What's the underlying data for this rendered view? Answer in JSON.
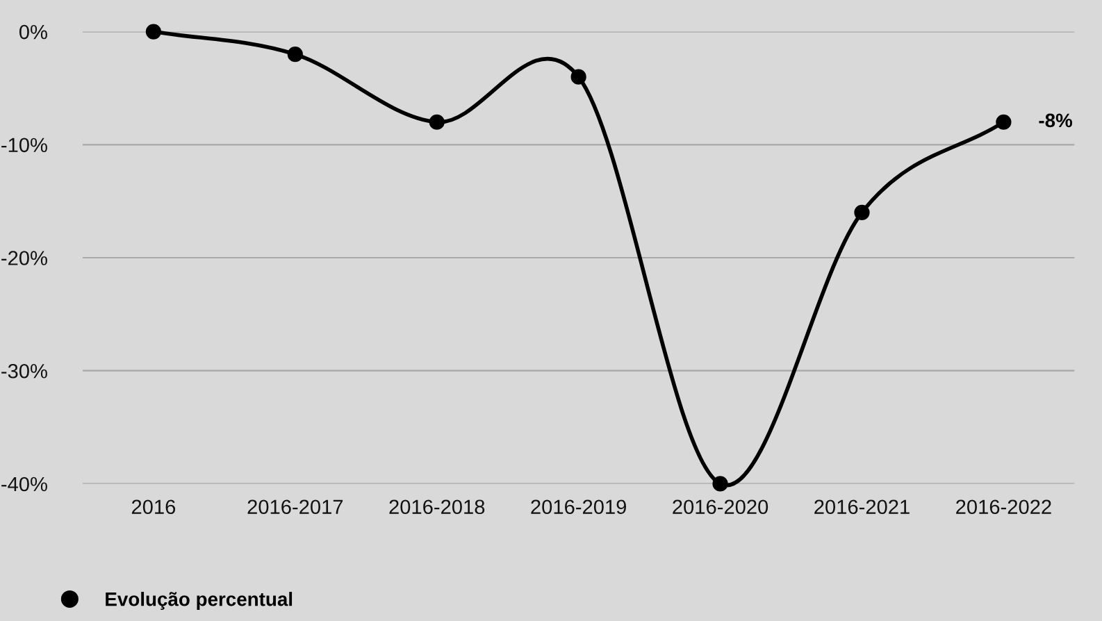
{
  "chart_data": {
    "type": "line",
    "categories": [
      "2016",
      "2016-2017",
      "2016-2018",
      "2016-2019",
      "2016-2020",
      "2016-2021",
      "2016-2022"
    ],
    "series": [
      {
        "name": "Evolução percentual",
        "color": "#000000",
        "values": [
          0,
          -2,
          -8,
          -4,
          -40,
          -16,
          -8
        ],
        "value_labels": [
          null,
          null,
          null,
          null,
          null,
          null,
          "-8%"
        ]
      }
    ],
    "ylim": [
      -40,
      0
    ],
    "yticks": [
      {
        "value": 0,
        "label": "0%"
      },
      {
        "value": -10,
        "label": "-10%"
      },
      {
        "value": -20,
        "label": "-20%"
      },
      {
        "value": -30,
        "label": "-30%"
      },
      {
        "value": -40,
        "label": "-40%"
      }
    ],
    "grid": "y",
    "legend": "bottom left",
    "marker": "circle",
    "line_style": "solid"
  }
}
